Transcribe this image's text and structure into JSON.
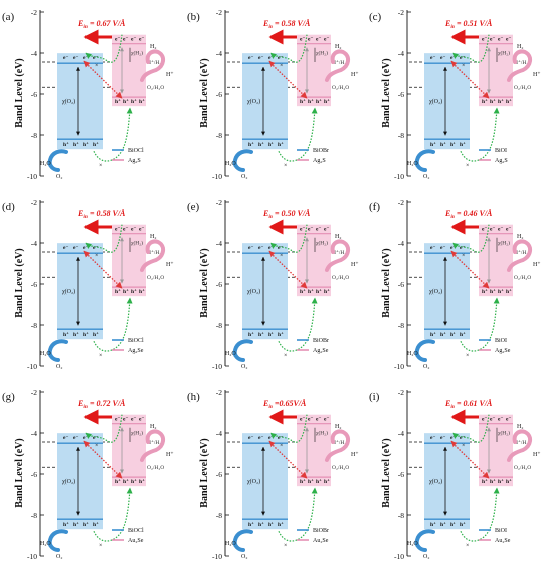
{
  "axis": {
    "ylabel": "Band Level (eV)",
    "ticks": [
      "-2",
      "-4",
      "-6",
      "-8",
      "-10"
    ],
    "ticks_range": [
      -10,
      -2
    ]
  },
  "labels": {
    "redox_h": "H⁺/H₂",
    "redox_o": "O₂/H₂O",
    "h2": "H₂",
    "hplus": "H⁺",
    "h2o": "H₂O",
    "o2": "O₂",
    "e": "e⁻",
    "h": "h⁺",
    "chi_o2": "χ(O₂)",
    "chi_h2": "χ(H₂)",
    "e_in_prefix": "E",
    "e_in_sub": "in"
  },
  "panels": [
    {
      "label": "(a)",
      "ein": " = 0.67 V/Å",
      "materials": [
        "BiOCl",
        "Ag₂S"
      ]
    },
    {
      "label": "(b)",
      "ein": " = 0.58 V/Å",
      "materials": [
        "BiOBr",
        "Ag₂S"
      ]
    },
    {
      "label": "(c)",
      "ein": " = 0.51 V/Å",
      "materials": [
        "BiOI",
        "Ag₂S"
      ]
    },
    {
      "label": "(d)",
      "ein": " = 0.58 V/Å",
      "materials": [
        "BiOCl",
        "Ag₂Se"
      ]
    },
    {
      "label": "(e)",
      "ein": " = 0.50 V/Å",
      "materials": [
        "BiOBr",
        "Ag₂Se"
      ]
    },
    {
      "label": "(f)",
      "ein": " = 0.46 V/Å",
      "materials": [
        "BiOI",
        "Ag₂Se"
      ]
    },
    {
      "label": "(g)",
      "ein": " = 0.72 V/Å",
      "materials": [
        "BiOCl",
        "Au₂Se"
      ]
    },
    {
      "label": "(h)",
      "ein": " =0.65V/Å",
      "materials": [
        "BiOBr",
        "Au₂Se"
      ]
    },
    {
      "label": "(i)",
      "ein": " = 0.61 V/Å",
      "materials": [
        "BiOI",
        "Au₂Se"
      ]
    }
  ],
  "colors": {
    "left_band": "#bcdcf2",
    "left_edge": "#3b8fd0",
    "right_band": "#f7cfe0",
    "right_edge": "#e58fb4",
    "arrow_red": "#e01818",
    "dot_green": "#2db04a",
    "dot_red": "#e03a3a",
    "h2_blob": "#e89aba"
  }
}
